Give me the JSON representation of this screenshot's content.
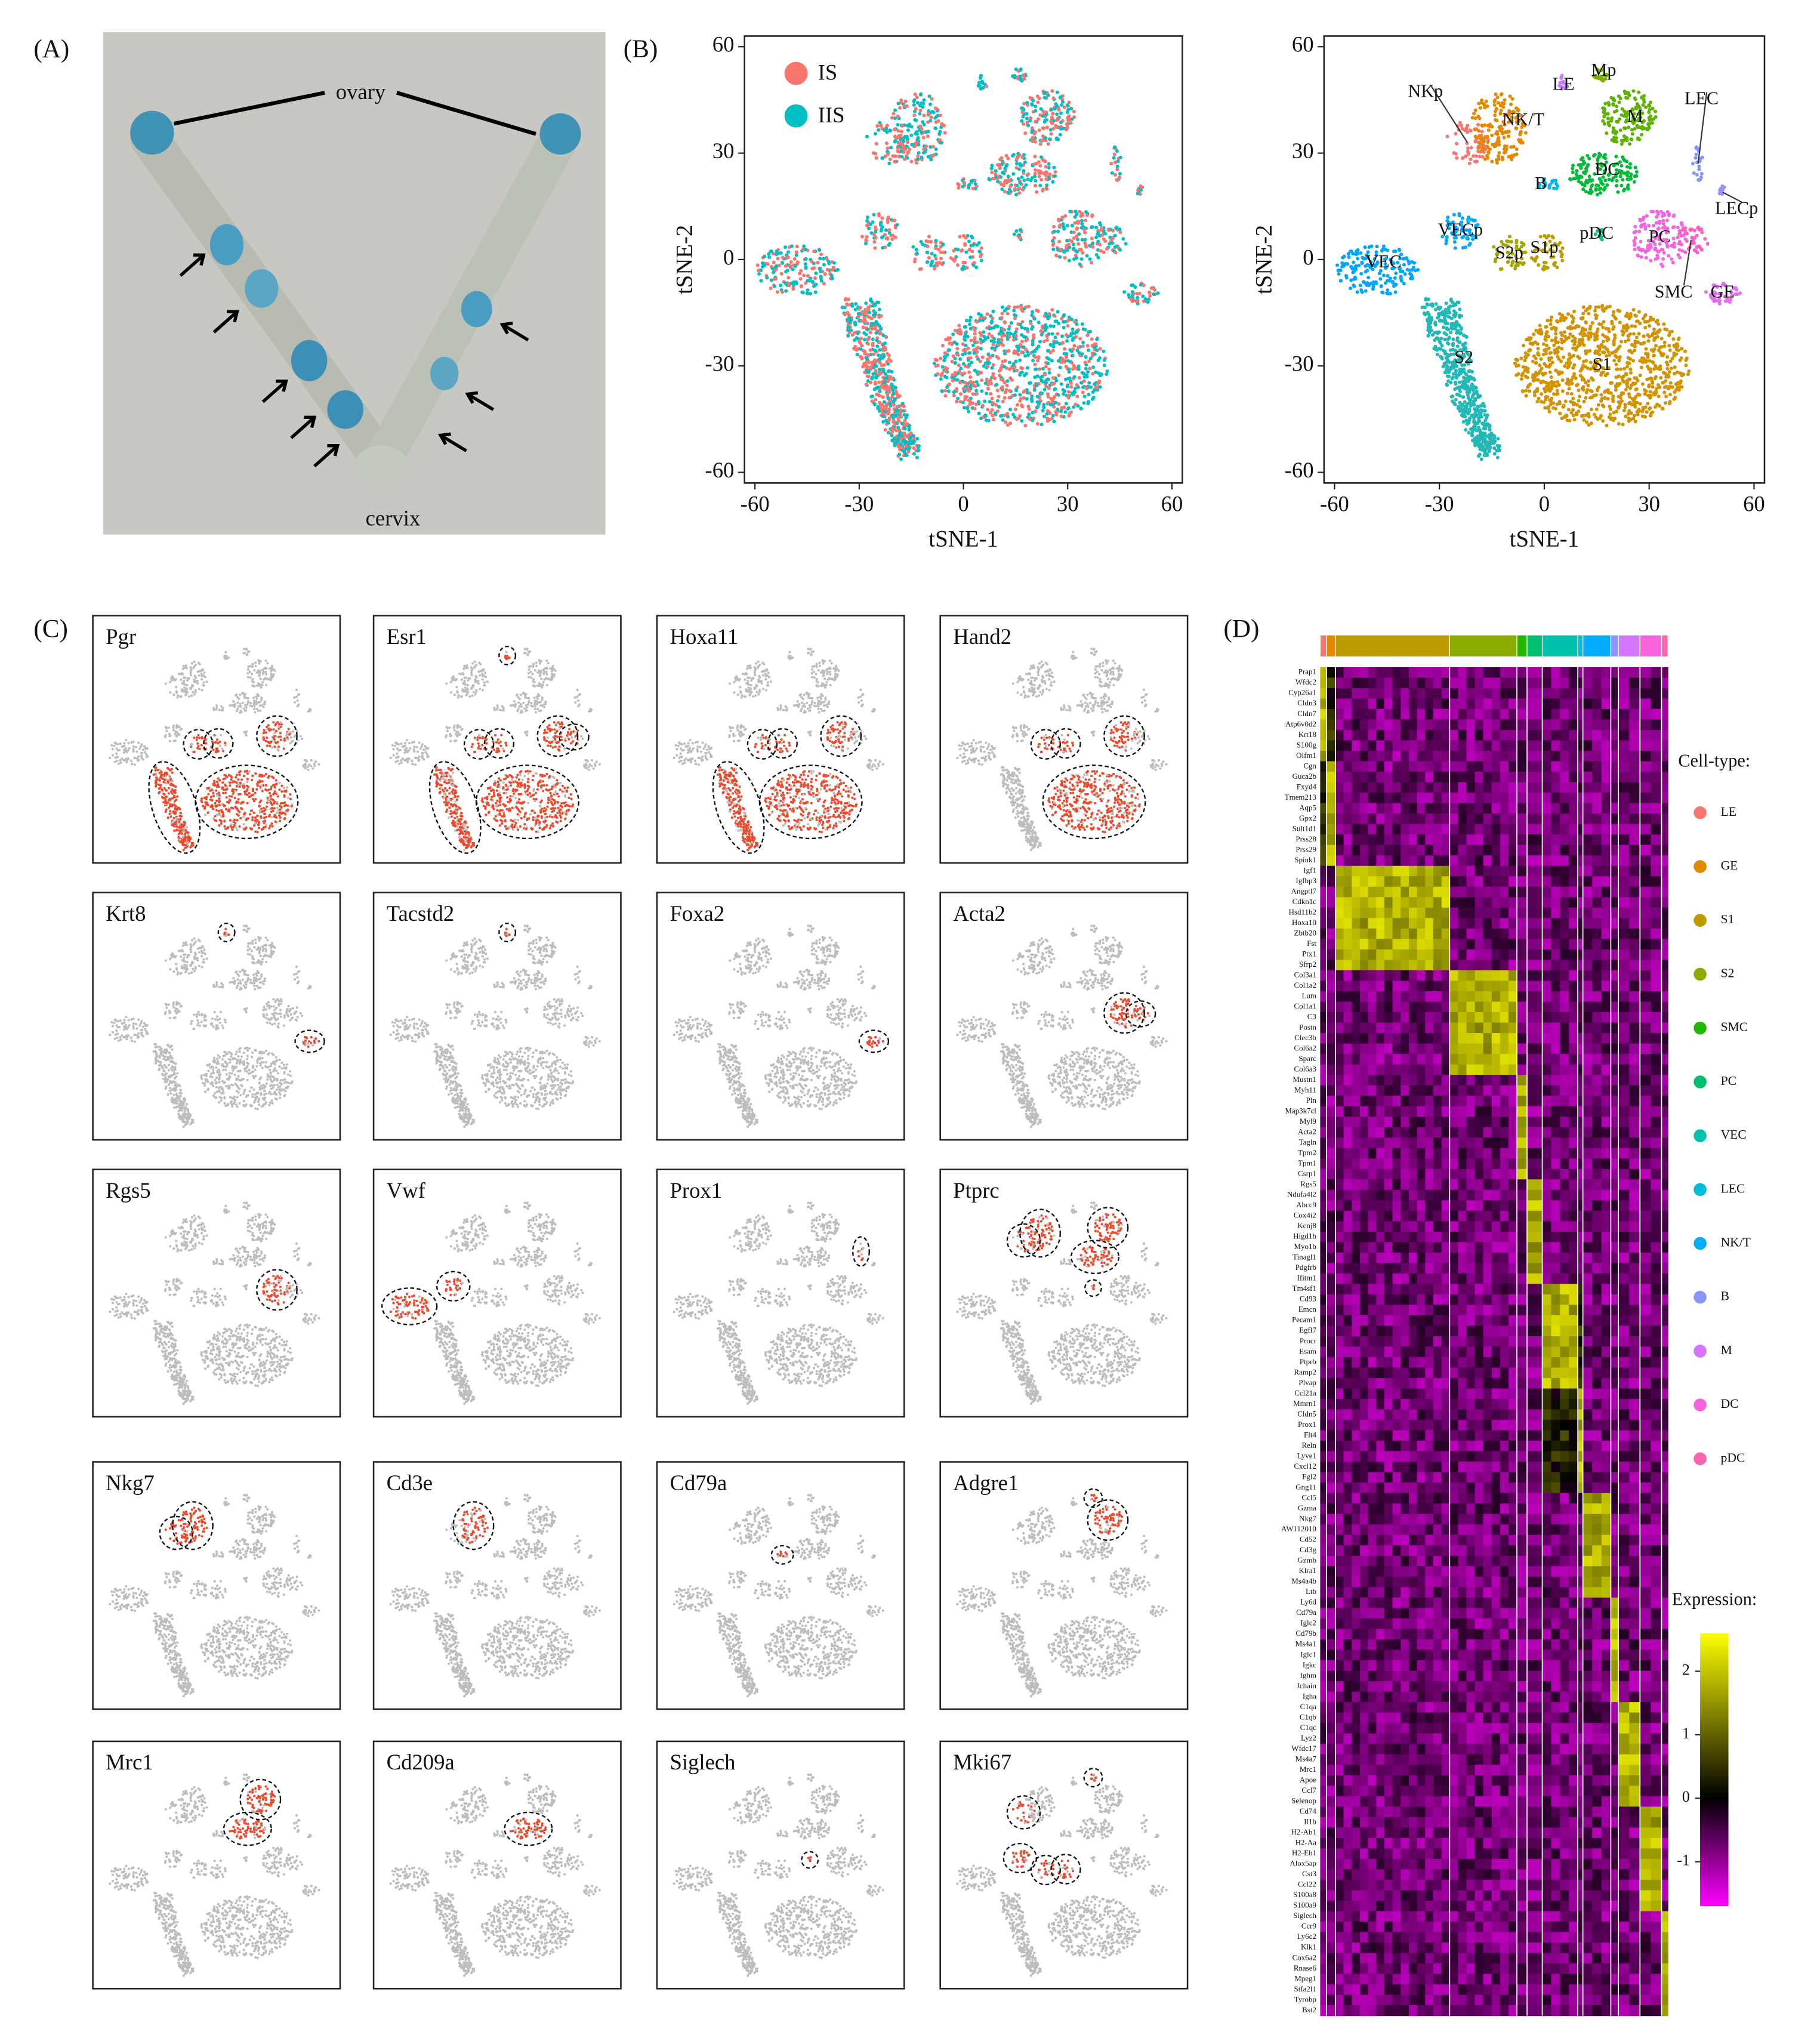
{
  "panel_labels": [
    "(A)",
    "(B)",
    "(C)",
    "(D)"
  ],
  "photo": {
    "labels": [
      "ovary",
      "cervix"
    ]
  },
  "chart_data": [
    {
      "type": "scatter",
      "xlabel": "tSNE-1",
      "ylabel": "tSNE-2",
      "xlim": [
        -63,
        63
      ],
      "ylim": [
        -63,
        63
      ],
      "xticks": [
        -60,
        -30,
        0,
        30,
        60
      ],
      "yticks": [
        -60,
        -30,
        0,
        30,
        60
      ],
      "series": [
        {
          "name": "IS",
          "color": "#f8766d"
        },
        {
          "name": "IIS",
          "color": "#00bfc4"
        }
      ]
    },
    {
      "type": "cluster-scatter",
      "xlabel": "tSNE-1",
      "ylabel": "tSNE-2",
      "xlim": [
        -63,
        63
      ],
      "ylim": [
        -63,
        63
      ],
      "xticks": [
        -60,
        -30,
        0,
        30,
        60
      ],
      "yticks": [
        -60,
        -30,
        0,
        30,
        60
      ],
      "clusters": [
        {
          "name": "NKp",
          "x": -34,
          "y": 47,
          "color": "#f8766d"
        },
        {
          "name": "NK/T",
          "x": -6,
          "y": 39,
          "color": "#e58700"
        },
        {
          "name": "LE",
          "x": 5.5,
          "y": 49,
          "color": "#c77cff"
        },
        {
          "name": "Mp",
          "x": 17,
          "y": 53,
          "color": "#7cae00"
        },
        {
          "name": "M",
          "x": 26,
          "y": 40,
          "color": "#5eb300"
        },
        {
          "name": "LEC",
          "x": 45,
          "y": 45,
          "color": "#8494ff"
        },
        {
          "name": "LECp",
          "x": 55,
          "y": 14,
          "color": "#9590ff"
        },
        {
          "name": "DC",
          "x": 18,
          "y": 25,
          "color": "#00ba38"
        },
        {
          "name": "B",
          "x": -1,
          "y": 21,
          "color": "#00b4ef"
        },
        {
          "name": "VECp",
          "x": -24,
          "y": 8,
          "color": "#00a9ff"
        },
        {
          "name": "VEC",
          "x": -46,
          "y": -1,
          "color": "#00a5ff"
        },
        {
          "name": "S2p",
          "x": -10,
          "y": 1.5,
          "color": "#a3a500"
        },
        {
          "name": "S1p",
          "x": 0,
          "y": 3,
          "color": "#b79f00"
        },
        {
          "name": "pDC",
          "x": 15,
          "y": 7,
          "color": "#00c08b"
        },
        {
          "name": "PC",
          "x": 33,
          "y": 6,
          "color": "#f564e3"
        },
        {
          "name": "SMC",
          "x": 37,
          "y": -9.5,
          "color": "#ff61c3"
        },
        {
          "name": "GE",
          "x": 51,
          "y": -9.5,
          "color": "#e76bf3"
        },
        {
          "name": "S2",
          "x": -23,
          "y": -28,
          "color": "#23b8b5"
        },
        {
          "name": "S1",
          "x": 16.5,
          "y": -30,
          "color": "#d39200"
        }
      ]
    },
    {
      "type": "feature-grid",
      "highlight_color": "#ec4a2c",
      "background_color": "#bdbdbd",
      "genes": [
        "Pgr",
        "Esr1",
        "Hoxa11",
        "Hand2",
        "Krt8",
        "Tacstd2",
        "Foxa2",
        "Acta2",
        "Rgs5",
        "Vwf",
        "Prox1",
        "Ptprc",
        "Nkg7",
        "Cd3e",
        "Cd79a",
        "Adgre1",
        "Mrc1",
        "Cd209a",
        "Siglech",
        "Mki67"
      ]
    },
    {
      "type": "heatmap",
      "legend_title": "Cell-type:",
      "cell_types": [
        {
          "name": "LE",
          "color": "#f8766d"
        },
        {
          "name": "GE",
          "color": "#e18a00"
        },
        {
          "name": "S1",
          "color": "#be9c00"
        },
        {
          "name": "S2",
          "color": "#8cab00"
        },
        {
          "name": "SMC",
          "color": "#24b700"
        },
        {
          "name": "PC",
          "color": "#00be70"
        },
        {
          "name": "VEC",
          "color": "#00c1ab"
        },
        {
          "name": "LEC",
          "color": "#00bbda"
        },
        {
          "name": "NK/T",
          "color": "#00acfc"
        },
        {
          "name": "B",
          "color": "#8b93ff"
        },
        {
          "name": "M",
          "color": "#d575fe"
        },
        {
          "name": "DC",
          "color": "#f962dd"
        },
        {
          "name": "pDC",
          "color": "#ff65ac"
        }
      ],
      "genes": [
        [
          "Prap1",
          "Wfdc2",
          "Cyp26a1",
          "Cldn3",
          "Cldn7",
          "Atp6v0d2",
          "Krt18",
          "S100g",
          "Olfm1"
        ],
        [
          "Cgn",
          "Guca2b",
          "Fxyd4",
          "Tmem213",
          "Aqp5",
          "Gpx2",
          "Sult1d1",
          "Prss28",
          "Prss29",
          "Spink1"
        ],
        [
          "Igf1",
          "Igfbp3",
          "Angptl7",
          "Cdkn1c",
          "Hsd11b2",
          "Hoxa10",
          "Zbtb20",
          "Fst",
          "Ptx1",
          "Sfrp2"
        ],
        [
          "Col3a1",
          "Col1a2",
          "Lum",
          "Col1a1",
          "C3",
          "Postn",
          "Clec3b",
          "Col6a2",
          "Sparc",
          "Col6a3"
        ],
        [
          "Mustn1",
          "Myh11",
          "Pln",
          "Map3k7cl",
          "Myl9",
          "Acta2",
          "Tagln",
          "Tpm2",
          "Tpm1",
          "Csrp1"
        ],
        [
          "Rgs5",
          "Ndufa4l2",
          "Abcc9",
          "Cox4i2",
          "Kcnj8",
          "Higd1b",
          "Myo1b",
          "Tinagl1",
          "Pdgfrb",
          "Ifitm1"
        ],
        [
          "Tm4sf1",
          "Cd93",
          "Emcn",
          "Pecam1",
          "Egfl7",
          "Procr",
          "Esam",
          "Ptprb",
          "Ramp2",
          "Plvap"
        ],
        [
          "Ccl21a",
          "Mmrn1",
          "Cldn5",
          "Prox1",
          "Flt4",
          "Reln",
          "Lyve1",
          "Cxcl12",
          "Fgl2",
          "Gng11"
        ],
        [
          "Ccl5",
          "Gzma",
          "Nkg7",
          "AW112010",
          "Cd52",
          "Cd3g",
          "Gzmb",
          "Klra1",
          "Ms4a4b",
          "Ltb"
        ],
        [
          "Ly6d",
          "Cd79a",
          "Iglc2",
          "Cd79b",
          "Ms4a1",
          "Iglc1",
          "Igkc",
          "Ighm",
          "Jchain",
          "Igha"
        ],
        [
          "C1qa",
          "C1qb",
          "C1qc",
          "Lyz2",
          "Wfdc17",
          "Ms4a7",
          "Mrc1",
          "Apoe",
          "Ccl7",
          "Selenop"
        ],
        [
          "Cd74",
          "Il1b",
          "H2-Ab1",
          "H2-Aa",
          "H2-Eb1",
          "Alox5ap",
          "Cst3",
          "Ccl22",
          "S100a8",
          "S100a9"
        ],
        [
          "Siglech",
          "Ccr9",
          "Ly6c2",
          "Klk1",
          "Cox6a2",
          "Rnase6",
          "Mpeg1",
          "Stfa2l1",
          "Tyrobp",
          "Bst2"
        ]
      ],
      "colorbar": {
        "title": "Expression:",
        "lim": [
          -1.7,
          2.6
        ],
        "ticks": [
          2,
          1,
          0,
          -1
        ],
        "colors": [
          "#ff00ff",
          "#000000",
          "#ffff00"
        ]
      }
    }
  ]
}
